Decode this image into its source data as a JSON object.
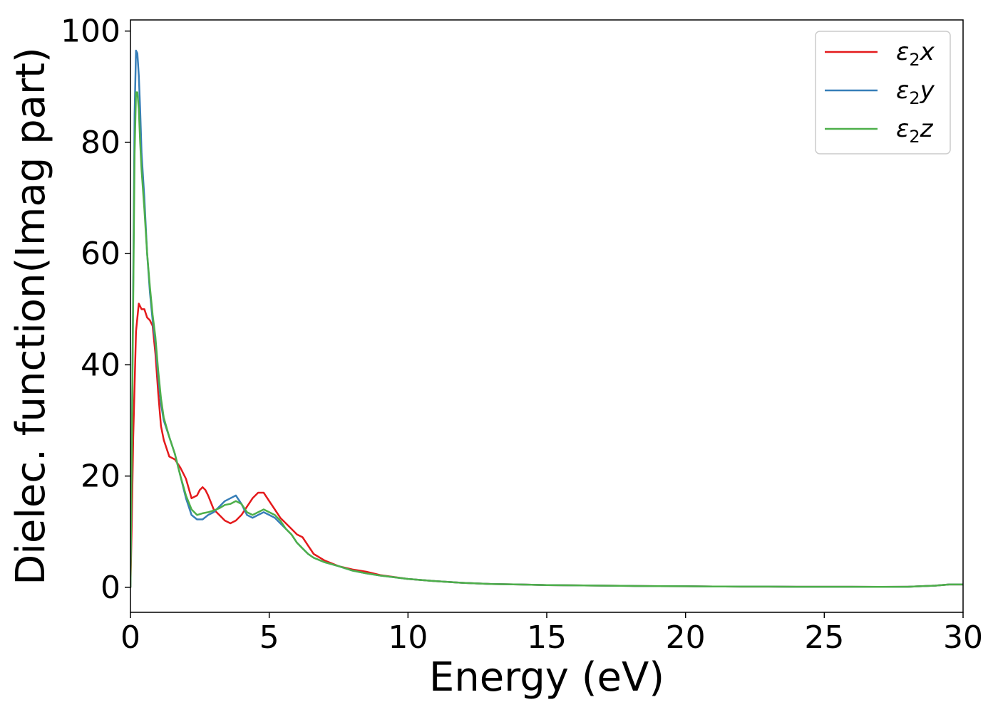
{
  "chart_data": {
    "type": "line",
    "xlabel": "Energy (eV)",
    "ylabel": "Dielec. function(Imag part)",
    "xlim": [
      0,
      30
    ],
    "ylim": [
      -4.5,
      102
    ],
    "xticks": [
      0,
      5,
      10,
      15,
      20,
      25,
      30
    ],
    "yticks": [
      0,
      20,
      40,
      60,
      80,
      100
    ],
    "legend_position": "top-right",
    "grid": false,
    "series": [
      {
        "name": "ε₂x",
        "legend_base": "ε",
        "legend_sub": "2",
        "legend_suffix": "x",
        "color": "#e41a1c",
        "x": [
          0,
          0.05,
          0.1,
          0.2,
          0.3,
          0.4,
          0.5,
          0.6,
          0.7,
          0.8,
          0.9,
          1.0,
          1.1,
          1.2,
          1.4,
          1.6,
          1.8,
          2.0,
          2.2,
          2.4,
          2.5,
          2.6,
          2.7,
          2.8,
          3.0,
          3.2,
          3.4,
          3.6,
          3.8,
          4.0,
          4.2,
          4.4,
          4.6,
          4.8,
          5.0,
          5.2,
          5.4,
          5.6,
          5.8,
          6.0,
          6.2,
          6.4,
          6.6,
          7.0,
          7.5,
          8.0,
          8.5,
          9.0,
          10,
          11,
          12,
          13,
          14,
          15,
          16,
          17,
          18,
          19,
          20,
          21,
          22,
          23,
          24,
          25,
          26,
          27,
          28,
          29,
          29.5,
          30
        ],
        "y": [
          0,
          12,
          27,
          46,
          51,
          50,
          50,
          48.5,
          48,
          47,
          42,
          35,
          29,
          26.5,
          23.5,
          23,
          21.5,
          19.5,
          16,
          16.5,
          17.5,
          18,
          17.5,
          16.5,
          14,
          13,
          12,
          11.5,
          12,
          13,
          14.5,
          16,
          17,
          17,
          15.5,
          14,
          12.5,
          11.5,
          10.5,
          9.5,
          9,
          7.5,
          6,
          4.8,
          3.8,
          3.2,
          2.8,
          2.2,
          1.5,
          1.1,
          0.8,
          0.6,
          0.5,
          0.4,
          0.35,
          0.3,
          0.25,
          0.2,
          0.18,
          0.15,
          0.12,
          0.12,
          0.1,
          0.1,
          0.1,
          0.08,
          0.1,
          0.3,
          0.5,
          0.5
        ]
      },
      {
        "name": "ε₂y",
        "legend_base": "ε",
        "legend_sub": "2",
        "legend_suffix": "y",
        "color": "#377eb8",
        "x": [
          0,
          0.05,
          0.1,
          0.15,
          0.2,
          0.25,
          0.3,
          0.35,
          0.4,
          0.5,
          0.6,
          0.7,
          0.8,
          0.9,
          1.0,
          1.1,
          1.2,
          1.4,
          1.6,
          1.8,
          2.0,
          2.2,
          2.4,
          2.6,
          2.8,
          3.0,
          3.2,
          3.4,
          3.6,
          3.8,
          4.0,
          4.2,
          4.4,
          4.6,
          4.8,
          5.0,
          5.2,
          5.4,
          5.6,
          5.8,
          6.0,
          6.2,
          6.4,
          6.6,
          7.0,
          7.5,
          8.0,
          8.5,
          9.0,
          10,
          11,
          12,
          13,
          14,
          15,
          16,
          17,
          18,
          19,
          20,
          21,
          22,
          23,
          24,
          25,
          26,
          27,
          28,
          29,
          29.5,
          30
        ],
        "y": [
          0,
          25,
          55,
          85,
          96.5,
          96,
          92,
          86,
          78,
          70,
          60,
          53,
          48,
          44,
          38,
          33,
          30,
          27,
          24,
          20,
          16,
          13,
          12.2,
          12.2,
          13,
          13.5,
          14.5,
          15.5,
          16,
          16.5,
          15,
          13,
          12.5,
          13,
          13.5,
          13,
          12.5,
          11.5,
          10.5,
          9.5,
          8,
          7,
          6,
          5.3,
          4.5,
          3.8,
          3.0,
          2.5,
          2.1,
          1.5,
          1.1,
          0.8,
          0.6,
          0.5,
          0.4,
          0.35,
          0.3,
          0.25,
          0.2,
          0.18,
          0.15,
          0.12,
          0.12,
          0.1,
          0.1,
          0.1,
          0.08,
          0.1,
          0.3,
          0.5,
          0.5
        ]
      },
      {
        "name": "ε₂z",
        "legend_base": "ε",
        "legend_sub": "2",
        "legend_suffix": "z",
        "color": "#4daf4a",
        "x": [
          0,
          0.05,
          0.1,
          0.15,
          0.2,
          0.25,
          0.3,
          0.35,
          0.4,
          0.5,
          0.6,
          0.7,
          0.8,
          0.9,
          1.0,
          1.1,
          1.2,
          1.4,
          1.6,
          1.8,
          2.0,
          2.2,
          2.4,
          2.6,
          2.8,
          3.0,
          3.2,
          3.4,
          3.6,
          3.8,
          4.0,
          4.2,
          4.4,
          4.6,
          4.8,
          5.0,
          5.2,
          5.4,
          5.6,
          5.8,
          6.0,
          6.2,
          6.4,
          6.6,
          7.0,
          7.5,
          8.0,
          8.5,
          9.0,
          10,
          11,
          12,
          13,
          14,
          15,
          16,
          17,
          18,
          19,
          20,
          21,
          22,
          23,
          24,
          25,
          26,
          27,
          28,
          29,
          29.5,
          30
        ],
        "y": [
          0,
          25,
          52,
          78,
          89,
          89,
          86,
          80,
          75,
          68,
          60,
          54,
          49,
          45,
          39,
          34,
          30.5,
          27,
          24,
          20,
          16.5,
          14,
          13,
          13.3,
          13.5,
          13.8,
          14.2,
          14.8,
          15,
          15.5,
          15,
          13.5,
          13,
          13.5,
          14,
          13.5,
          13,
          12,
          10.5,
          9.5,
          8,
          7,
          6,
          5.3,
          4.5,
          3.8,
          3.0,
          2.5,
          2.1,
          1.5,
          1.1,
          0.8,
          0.6,
          0.5,
          0.4,
          0.35,
          0.3,
          0.25,
          0.2,
          0.18,
          0.15,
          0.12,
          0.12,
          0.1,
          0.1,
          0.1,
          0.08,
          0.1,
          0.3,
          0.5,
          0.5
        ]
      }
    ]
  }
}
